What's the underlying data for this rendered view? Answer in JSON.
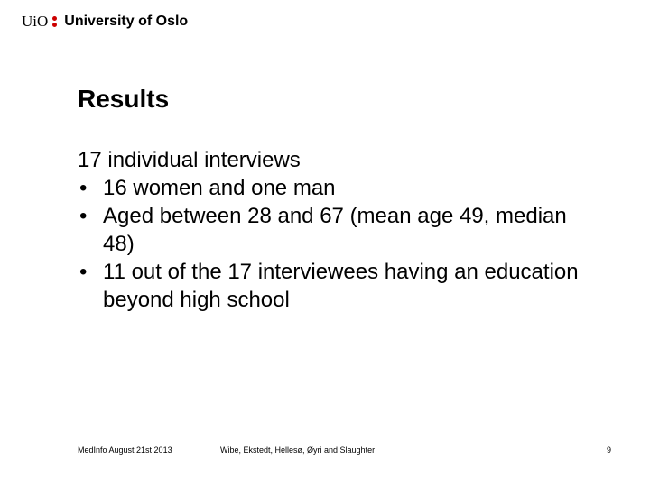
{
  "header": {
    "logo_short": "UiO",
    "logo_name": "University of Oslo"
  },
  "slide": {
    "title": "Results",
    "lead": "17 individual interviews",
    "bullets": [
      "16 women and one man",
      "Aged between 28 and 67 (mean age 49, median 48)",
      "11 out of the 17 interviewees having an education beyond high school"
    ]
  },
  "footer": {
    "left": "MedInfo August 21st 2013",
    "center": "Wibe, Ekstedt, Hellesø, Øyri and Slaughter",
    "page": "9"
  }
}
